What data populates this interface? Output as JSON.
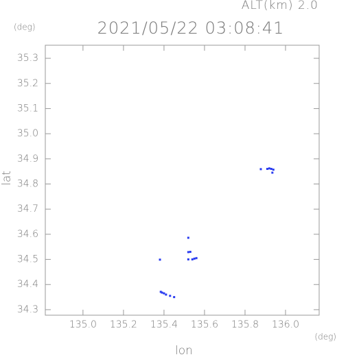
{
  "chart_data": {
    "type": "scatter",
    "title": "2021/05/22 03:08:41",
    "annotation": "ALT(km) 2.0",
    "y_unit": "(deg)",
    "x_unit": "(deg)",
    "xlabel": "lon",
    "ylabel": "lat",
    "color": "#2a3cf0",
    "x": [
      135.878,
      135.91,
      135.92,
      135.93,
      135.94,
      135.935,
      135.52,
      135.52,
      135.53,
      135.52,
      135.54,
      135.55,
      135.56,
      135.38,
      135.384,
      135.39,
      135.4,
      135.41,
      135.43,
      135.45
    ],
    "values": [
      34.859,
      34.86,
      34.862,
      34.86,
      34.857,
      34.845,
      34.586,
      34.529,
      34.53,
      34.5,
      34.5,
      34.503,
      34.505,
      34.499,
      34.371,
      34.368,
      34.365,
      34.36,
      34.355,
      34.35
    ],
    "xlim": [
      134.814,
      136.166
    ],
    "ylim": [
      34.278,
      35.352
    ],
    "xticks": [
      {
        "value": 135.0,
        "label": "135.0"
      },
      135.2,
      135.4,
      135.6,
      135.8,
      {
        "value": 136.0,
        "label": "136.0"
      }
    ],
    "yticks": [
      34.3,
      34.4,
      34.5,
      34.6,
      34.7,
      34.8,
      34.9,
      {
        "value": 35.0,
        "label": "35.0"
      },
      35.1,
      35.2,
      35.3
    ],
    "grid": false
  }
}
